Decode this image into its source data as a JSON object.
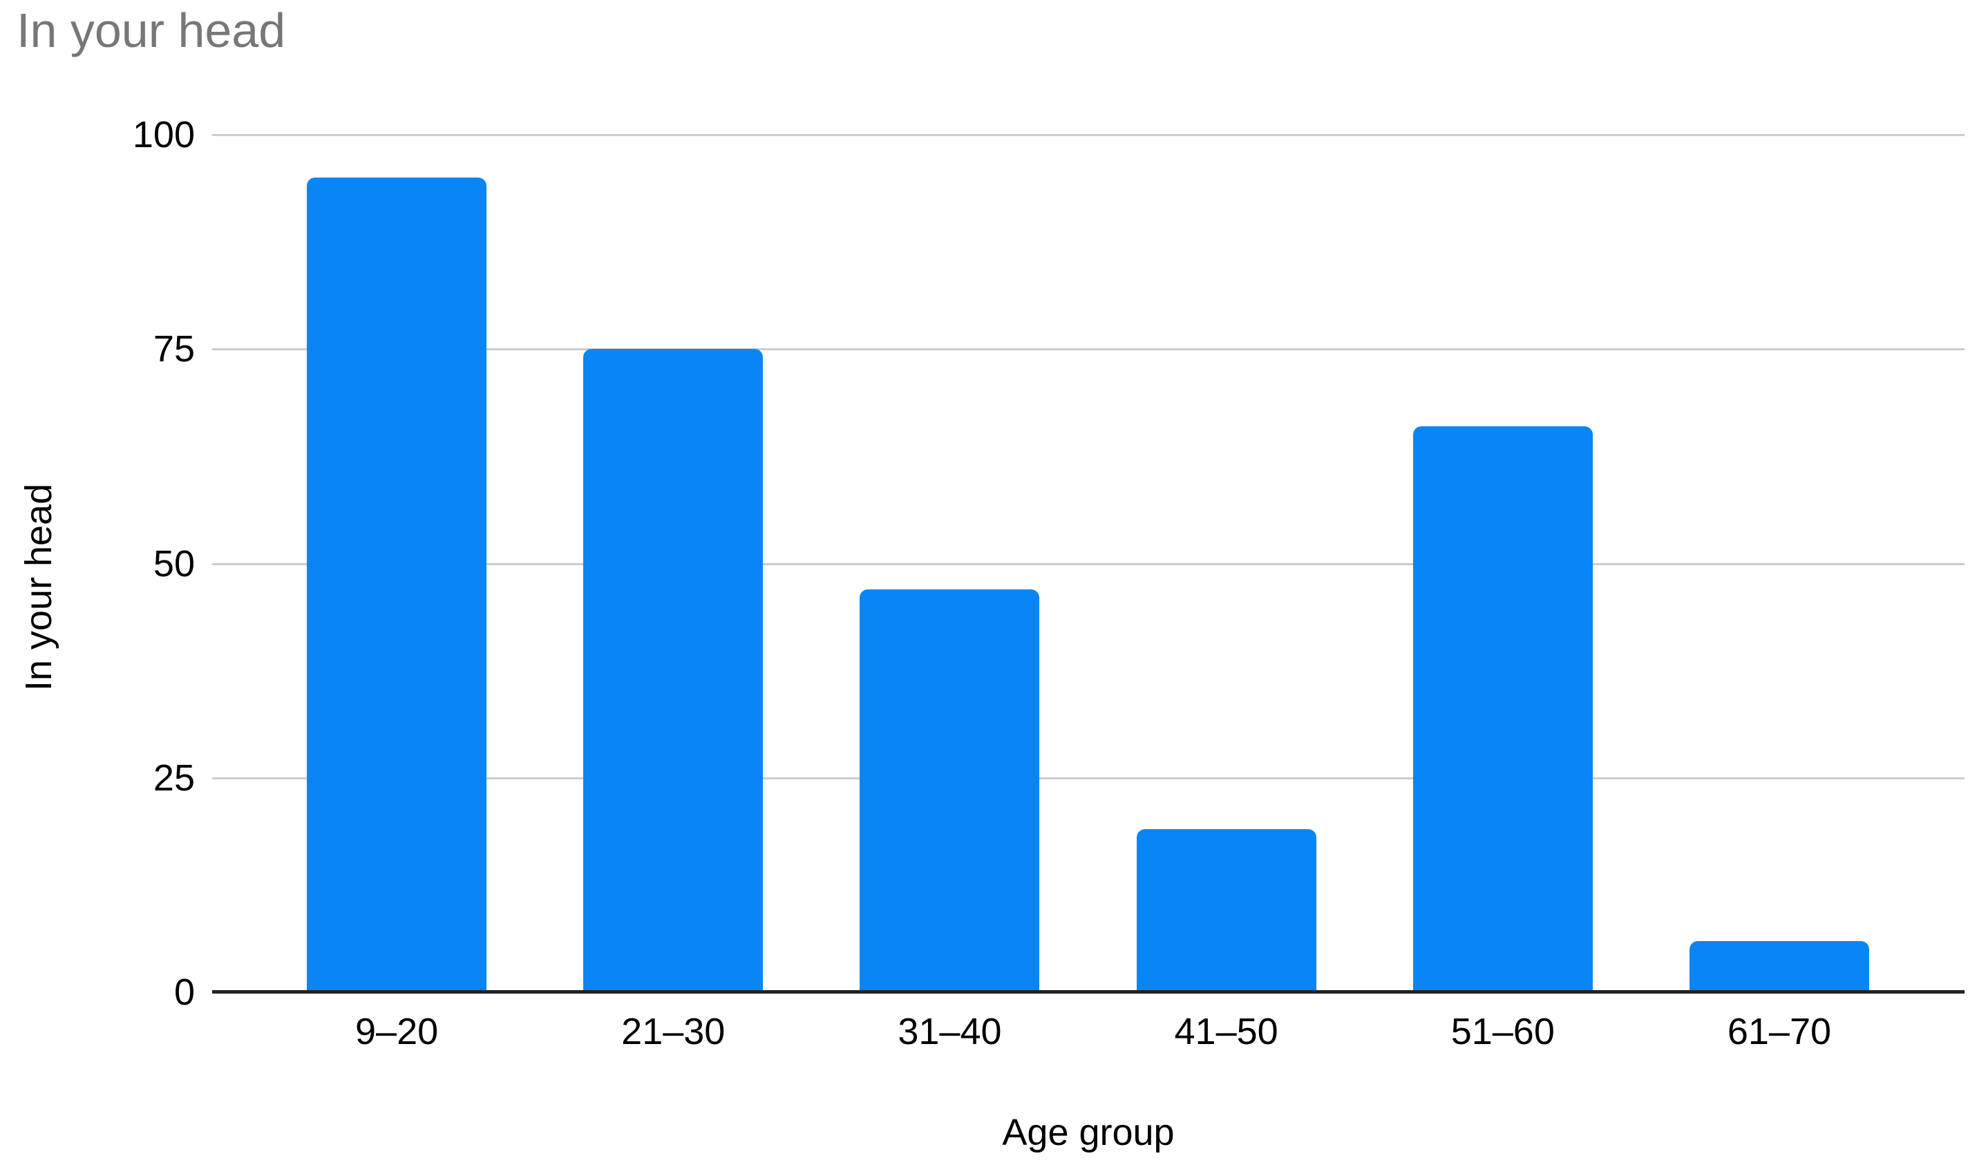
{
  "page": {
    "background": "#ffffff"
  },
  "chart": {
    "title_color": "#777777",
    "bar_color": "#0a86f4",
    "gridline_color": "#cccccc",
    "axis_line_color": "#222222",
    "text_color": "#000000"
  },
  "chart_data": {
    "type": "bar",
    "title": "In your head",
    "xlabel": "Age group",
    "ylabel": "In your head",
    "categories": [
      "9–20",
      "21–30",
      "31–40",
      "41–50",
      "51–60",
      "61–70"
    ],
    "values": [
      95,
      75,
      47,
      19,
      66,
      6
    ],
    "yticks": [
      0,
      25,
      50,
      75,
      100
    ],
    "ylim": [
      0,
      100
    ],
    "grid": true,
    "legend": "none"
  }
}
